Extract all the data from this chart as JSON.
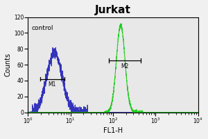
{
  "title": "Jurkat",
  "title_fontsize": 11,
  "title_fontweight": "bold",
  "xlabel": "FL1-H",
  "ylabel": "Counts",
  "ylabel_fontsize": 7,
  "xlabel_fontsize": 7,
  "annotation_control": "control",
  "annotation_M1": "M1",
  "annotation_M2": "M2",
  "ylim": [
    0,
    120
  ],
  "yticks": [
    0,
    20,
    40,
    60,
    80,
    100,
    120
  ],
  "xlim_log_min": 1,
  "xlim_log_max": 10000,
  "blue_color": "#3333bb",
  "green_color": "#22cc22",
  "background_color": "#f0f0f0",
  "plot_bg_color": "#e8e8e8",
  "blue_peak_log": 0.62,
  "blue_peak_height": 75,
  "blue_sigma_log": 0.18,
  "green_peak_log": 2.18,
  "green_peak_height": 110,
  "green_sigma_log": 0.1,
  "m1_x1_log": 0.28,
  "m1_x2_log": 0.85,
  "m1_y": 42,
  "m2_x1_log": 1.9,
  "m2_x2_log": 2.65,
  "m2_y": 65
}
